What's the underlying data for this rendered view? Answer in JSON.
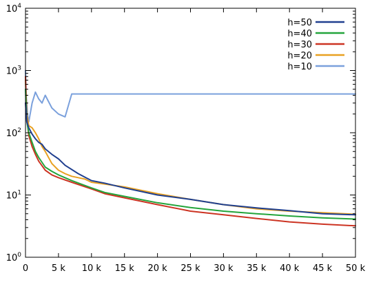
{
  "chart_data": {
    "type": "line",
    "title": "",
    "xlabel": "",
    "ylabel": "",
    "xlim": [
      0,
      50000
    ],
    "ylim": [
      1,
      10000
    ],
    "yscale": "log",
    "grid": false,
    "legend_position": "top-right",
    "x_ticks": [
      {
        "value": 0,
        "label": "0"
      },
      {
        "value": 5000,
        "label": "5 k"
      },
      {
        "value": 10000,
        "label": "10 k"
      },
      {
        "value": 15000,
        "label": "15 k"
      },
      {
        "value": 20000,
        "label": "20 k"
      },
      {
        "value": 25000,
        "label": "25 k"
      },
      {
        "value": 30000,
        "label": "30 k"
      },
      {
        "value": 35000,
        "label": "35 k"
      },
      {
        "value": 40000,
        "label": "40 k"
      },
      {
        "value": 45000,
        "label": "45 k"
      },
      {
        "value": 50000,
        "label": "50 k"
      }
    ],
    "y_ticks": [
      {
        "value": 1,
        "base": "10",
        "exp": "0"
      },
      {
        "value": 10,
        "base": "10",
        "exp": "1"
      },
      {
        "value": 100,
        "base": "10",
        "exp": "2"
      },
      {
        "value": 1000,
        "base": "10",
        "exp": "3"
      },
      {
        "value": 10000,
        "base": "10",
        "exp": "4"
      }
    ],
    "series": [
      {
        "name": "h=50",
        "color": "#1f3f8f",
        "x": [
          0,
          200,
          500,
          1000,
          1500,
          2000,
          2500,
          3000,
          4000,
          5000,
          6000,
          8000,
          10000,
          12000,
          15000,
          20000,
          25000,
          30000,
          35000,
          40000,
          45000,
          50000
        ],
        "y": [
          300,
          150,
          120,
          95,
          80,
          70,
          65,
          55,
          45,
          38,
          30,
          22,
          17,
          15.5,
          13,
          10,
          8.5,
          7,
          6.2,
          5.6,
          5.0,
          4.8
        ]
      },
      {
        "name": "h=40",
        "color": "#22a43a",
        "x": [
          0,
          200,
          500,
          1000,
          1500,
          2000,
          3000,
          4000,
          5000,
          7000,
          10000,
          12000,
          15000,
          20000,
          25000,
          30000,
          35000,
          40000,
          45000,
          50000
        ],
        "y": [
          500,
          150,
          100,
          70,
          50,
          40,
          28,
          24,
          21,
          17,
          13,
          11,
          9.5,
          7.5,
          6.3,
          5.5,
          5.0,
          4.6,
          4.3,
          4.1
        ]
      },
      {
        "name": "h=30",
        "color": "#cc3322",
        "x": [
          0,
          200,
          500,
          1000,
          1500,
          2000,
          3000,
          4000,
          5000,
          7000,
          10000,
          12000,
          15000,
          20000,
          25000,
          30000,
          35000,
          40000,
          45000,
          50000
        ],
        "y": [
          800,
          170,
          90,
          60,
          45,
          35,
          25,
          21,
          19,
          16,
          12.5,
          10.5,
          9,
          7,
          5.5,
          4.8,
          4.2,
          3.7,
          3.4,
          3.2
        ]
      },
      {
        "name": "h=20",
        "color": "#e8a020",
        "x": [
          0,
          200,
          500,
          1000,
          1500,
          2000,
          2500,
          3000,
          4000,
          5000,
          6000,
          7000,
          8000,
          9000,
          10000,
          12000,
          15000,
          20000,
          25000,
          30000,
          35000,
          40000,
          45000,
          50000
        ],
        "y": [
          700,
          200,
          130,
          120,
          100,
          80,
          60,
          50,
          32,
          25,
          22,
          20,
          19,
          18,
          16,
          15,
          13.5,
          10.5,
          8.5,
          7,
          6,
          5.5,
          5.2,
          4.9
        ]
      },
      {
        "name": "h=10",
        "color": "#7aa0dc",
        "x": [
          0,
          100,
          300,
          500,
          1000,
          1500,
          2000,
          2500,
          3000,
          4000,
          5000,
          6000,
          7000,
          8000,
          10000,
          15000,
          20000,
          25000,
          30000,
          35000,
          40000,
          45000,
          50000
        ],
        "y": [
          1000,
          400,
          200,
          150,
          300,
          450,
          350,
          300,
          400,
          250,
          200,
          180,
          420,
          420,
          420,
          420,
          420,
          420,
          420,
          420,
          420,
          420,
          420
        ]
      }
    ]
  }
}
